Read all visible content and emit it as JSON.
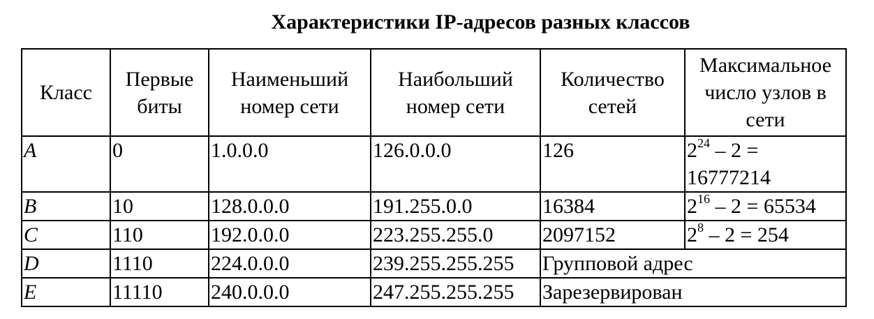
{
  "title": "Характеристики IP-адресов разных классов",
  "table": {
    "headers": [
      "Класс",
      "Первые биты",
      "Наименьший номер сети",
      "Наибольший номер сети",
      "Количество сетей",
      "Максимальное число узлов в сети"
    ],
    "rows": [
      {
        "class": "A",
        "bits": "0",
        "min_net": "1.0.0.0",
        "max_net": "126.0.0.0",
        "networks": "126",
        "hosts_base": "2",
        "hosts_exp": "24",
        "hosts_rest": " – 2 = 16777214"
      },
      {
        "class": "B",
        "bits": "10",
        "min_net": "128.0.0.0",
        "max_net": "191.255.0.0",
        "networks": "16384",
        "hosts_base": "2",
        "hosts_exp": "16",
        "hosts_rest": " – 2 = 65534"
      },
      {
        "class": "C",
        "bits": "110",
        "min_net": "192.0.0.0",
        "max_net": "223.255.255.0",
        "networks": "2097152",
        "hosts_base": "2",
        "hosts_exp": "8",
        "hosts_rest": " – 2 = 254"
      },
      {
        "class": "D",
        "bits": "1110",
        "min_net": "224.0.0.0",
        "max_net": "239.255.255.255",
        "note": "Групповой адрес"
      },
      {
        "class": "E",
        "bits": "11110",
        "min_net": "240.0.0.0",
        "max_net": "247.255.255.255",
        "note": "Зарезервирован"
      }
    ]
  }
}
